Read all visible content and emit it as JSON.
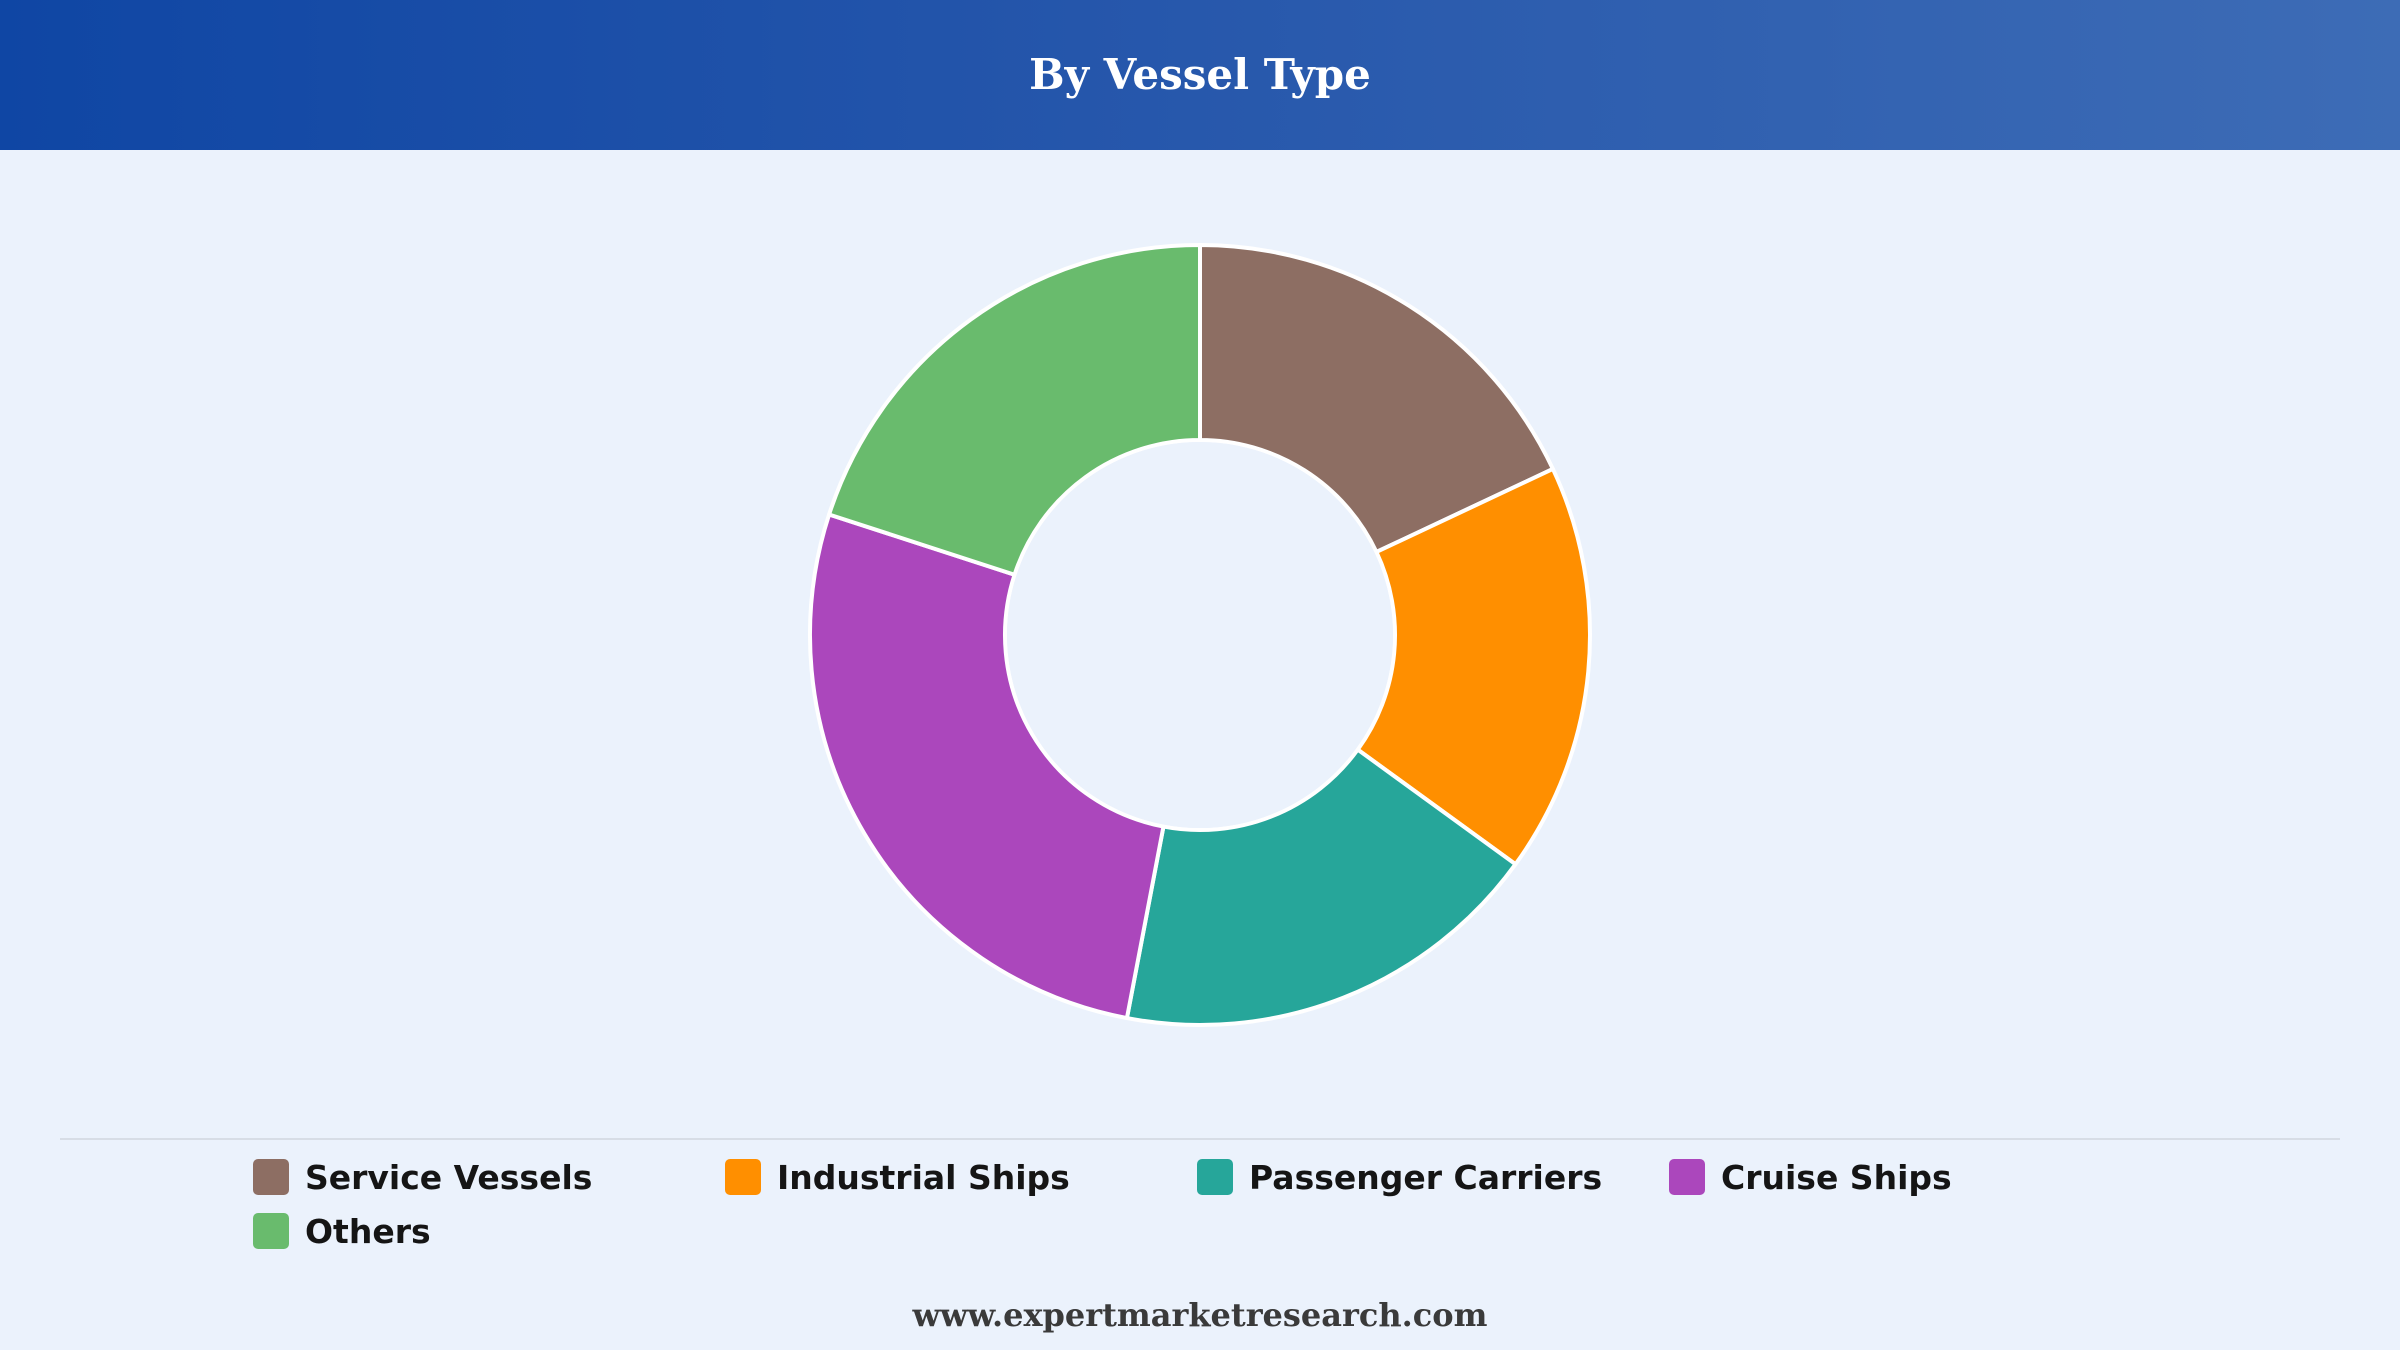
{
  "header": {
    "title": "By Vessel Type"
  },
  "chart_data": {
    "type": "pie",
    "style": "donut",
    "title": "By Vessel Type",
    "categories": [
      "Service Vessels",
      "Industrial Ships",
      "Passenger Carriers",
      "Cruise Ships",
      "Others"
    ],
    "values": [
      18,
      17,
      18,
      27,
      20
    ],
    "unit": "%",
    "colors": [
      "#8d6e63",
      "#ff8f00",
      "#26a69a",
      "#ab47bc",
      "#69bb6d"
    ],
    "legend": "bottom"
  },
  "legend": {
    "items": [
      {
        "label": "Service Vessels",
        "color": "#8d6e63"
      },
      {
        "label": "Industrial Ships",
        "color": "#ff8f00"
      },
      {
        "label": "Passenger Carriers",
        "color": "#26a69a"
      },
      {
        "label": "Cruise Ships",
        "color": "#ab47bc"
      },
      {
        "label": "Others",
        "color": "#69bb6d"
      }
    ]
  },
  "footer": {
    "source": "www.expertmarketresearch.com"
  }
}
